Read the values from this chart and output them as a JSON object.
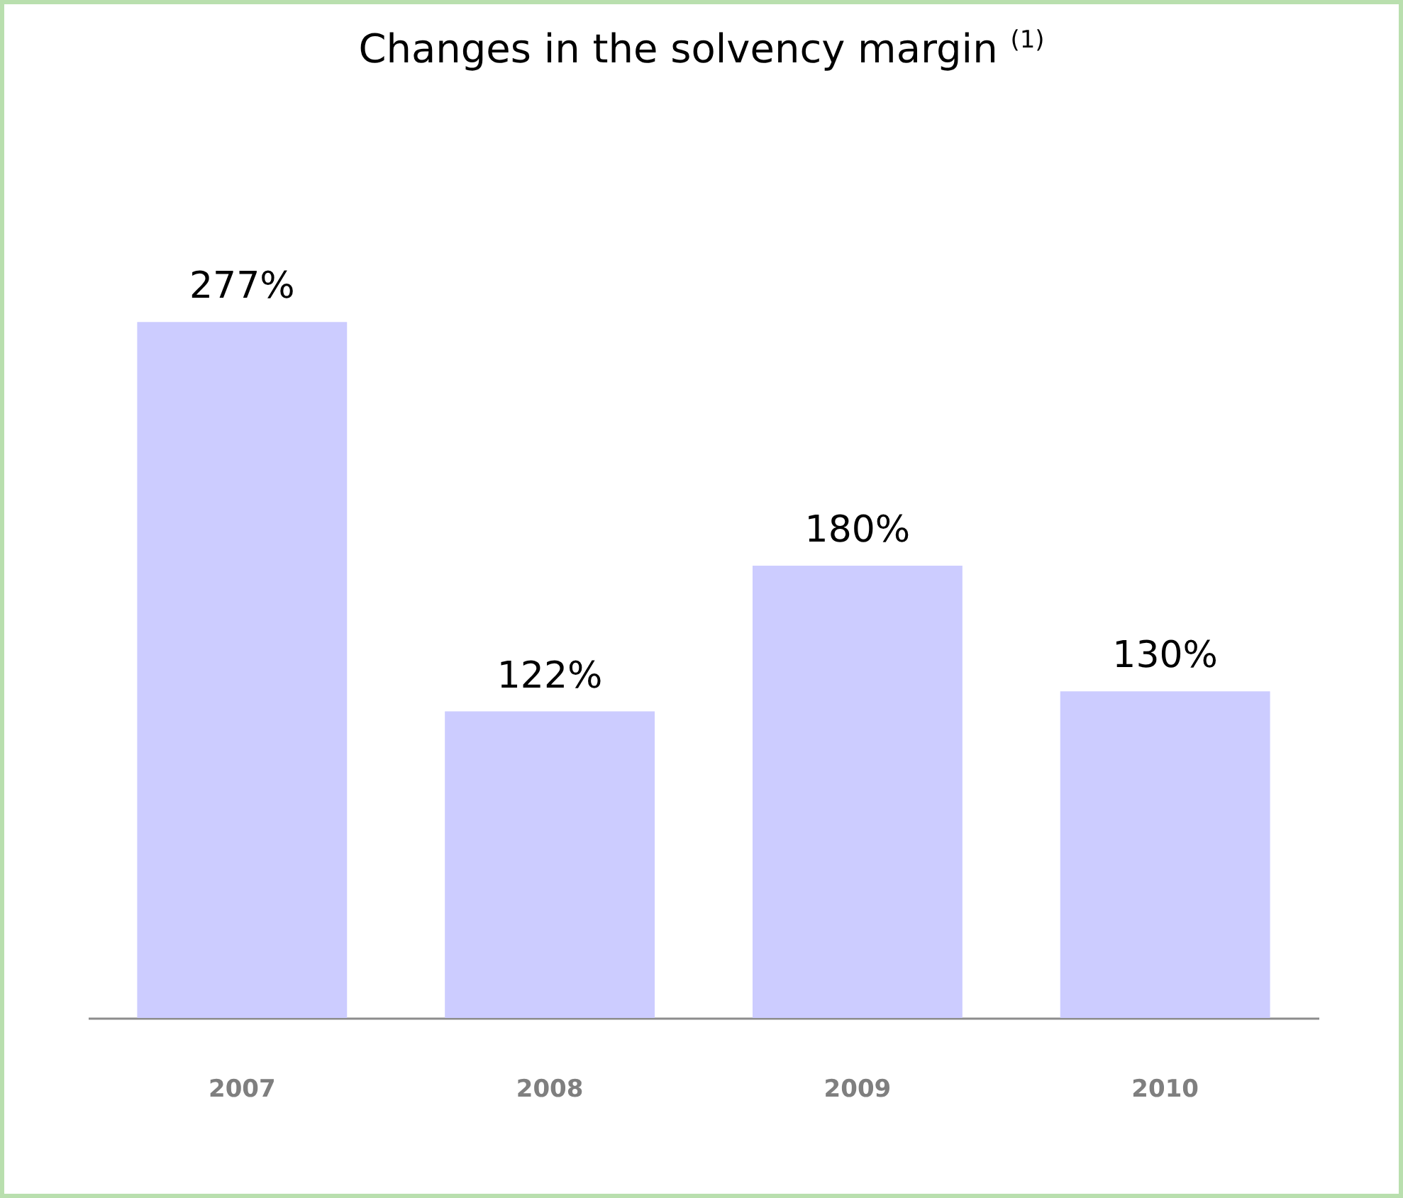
{
  "chart_data": {
    "type": "bar",
    "title": "Changes in the solvency margin $^{(1)}$",
    "categories": [
      "2007",
      "2008",
      "2009",
      "2010"
    ],
    "values": [
      277,
      122,
      180,
      130
    ],
    "value_labels": [
      "277%",
      "122%",
      "180%",
      "130%"
    ],
    "color": "#ccccff"
  }
}
